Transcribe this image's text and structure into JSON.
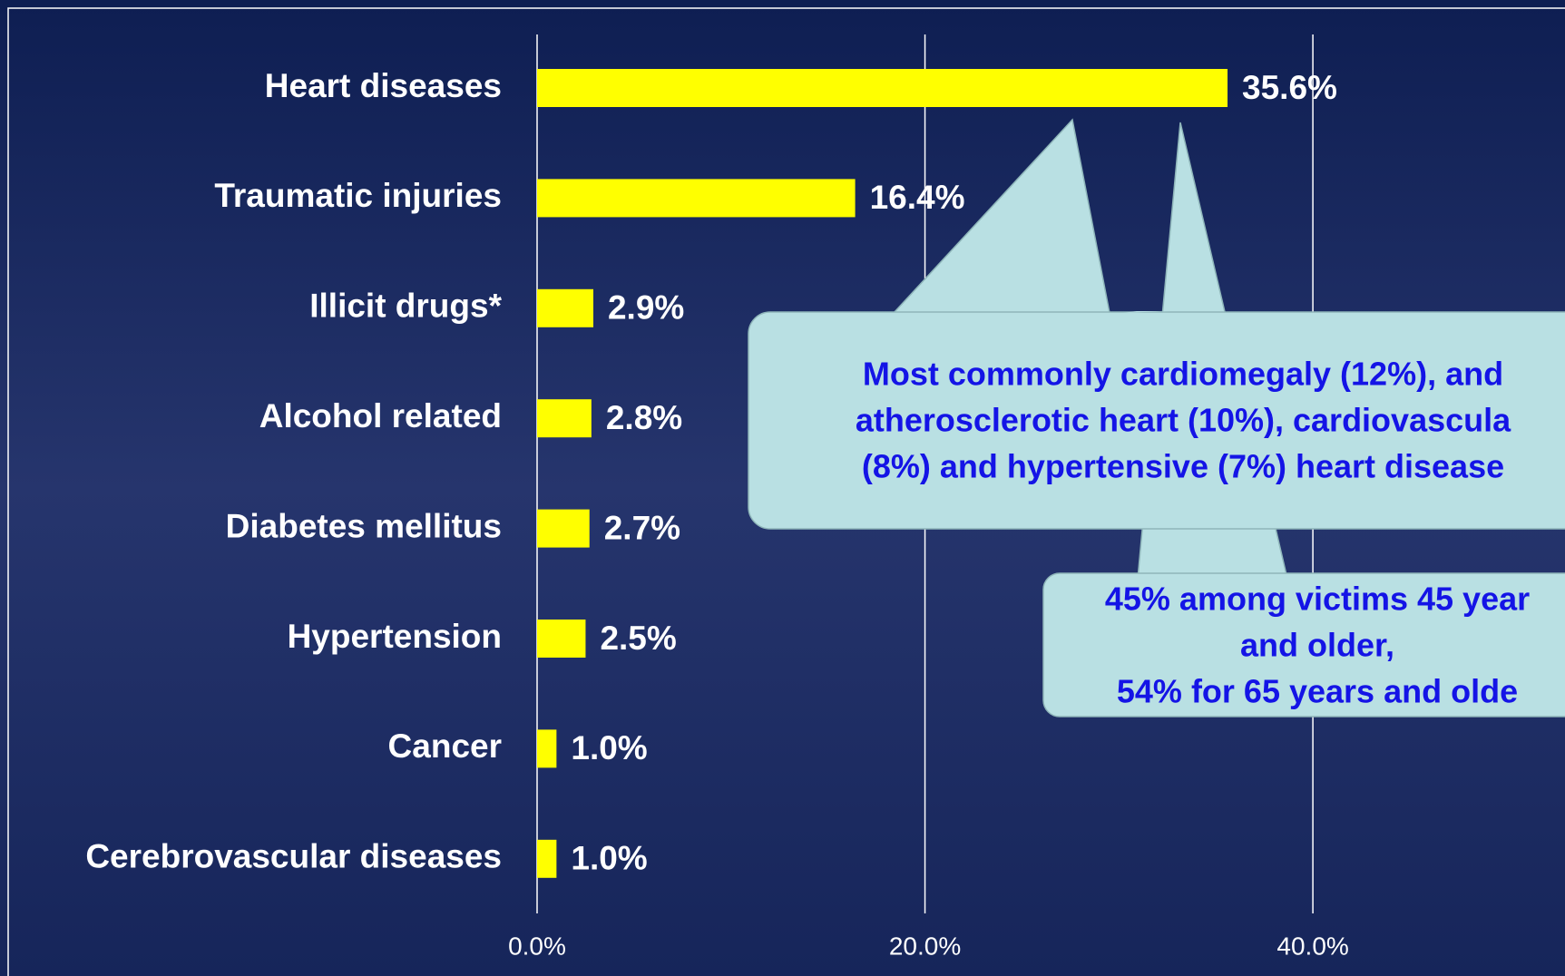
{
  "chart_data": {
    "type": "barh",
    "categories": [
      "Heart diseases",
      "Traumatic injuries",
      "Illicit drugs*",
      "Alcohol related",
      "Diabetes mellitus",
      "Hypertension",
      "Cancer",
      "Cerebrovascular diseases"
    ],
    "values": [
      35.6,
      16.4,
      2.9,
      2.8,
      2.7,
      2.5,
      1.0,
      1.0
    ],
    "value_labels": [
      "35.6%",
      "16.4%",
      "2.9%",
      "2.8%",
      "2.7%",
      "2.5%",
      "1.0%",
      "1.0%"
    ],
    "color": "#ffff00",
    "xlim": [
      0,
      53
    ],
    "xticks": [
      {
        "value": 0,
        "label": "0.0%"
      },
      {
        "value": 20,
        "label": "20.0%"
      },
      {
        "value": 40,
        "label": "40.0%"
      }
    ],
    "grid": true,
    "annotations": [
      {
        "lines": [
          "Most commonly cardiomegaly (12%), and",
          "atherosclerotic heart (10%), cardiovascula",
          "(8%) and hypertensive (7%) heart disease"
        ]
      },
      {
        "lines": [
          "45% among victims 45 year",
          "and older,",
          "54% for 65 years and olde"
        ]
      }
    ]
  }
}
